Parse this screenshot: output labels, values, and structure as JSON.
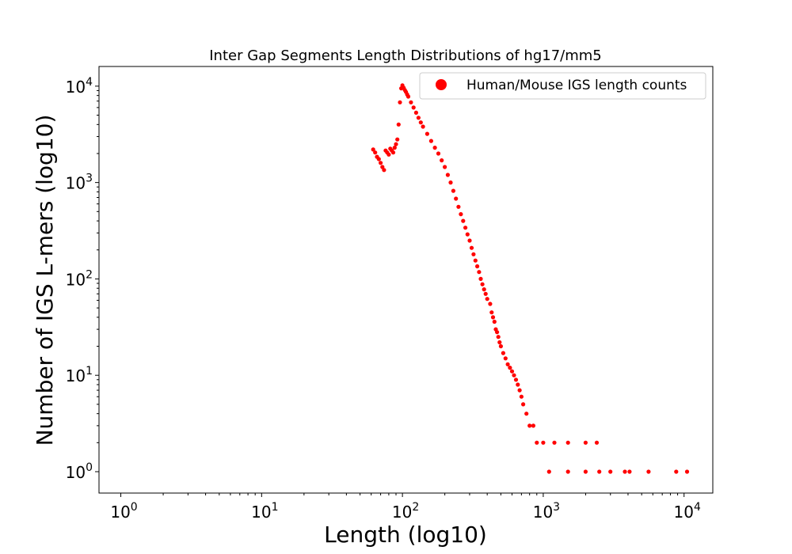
{
  "chart_data": {
    "type": "scatter",
    "title": "Inter Gap Segments Length Distributions of hg17/mm5",
    "xlabel": "Length (log10)",
    "ylabel": "Number of IGS L-mers (log10)",
    "xscale": "log",
    "yscale": "log",
    "xlim": [
      0.7,
      16000
    ],
    "ylim": [
      0.6,
      16000
    ],
    "grid": false,
    "legend_position": "top-right",
    "marker_color": "#ff0000",
    "x_ticks": [
      {
        "value": 1,
        "base": "10",
        "exp": "0"
      },
      {
        "value": 10,
        "base": "10",
        "exp": "1"
      },
      {
        "value": 100,
        "base": "10",
        "exp": "2"
      },
      {
        "value": 1000,
        "base": "10",
        "exp": "3"
      },
      {
        "value": 10000,
        "base": "10",
        "exp": "4"
      }
    ],
    "y_ticks": [
      {
        "value": 1,
        "base": "10",
        "exp": "0"
      },
      {
        "value": 10,
        "base": "10",
        "exp": "1"
      },
      {
        "value": 100,
        "base": "10",
        "exp": "2"
      },
      {
        "value": 1000,
        "base": "10",
        "exp": "3"
      },
      {
        "value": 10000,
        "base": "10",
        "exp": "4"
      }
    ],
    "series": [
      {
        "name": "Human/Mouse IGS length counts",
        "points": [
          [
            62,
            2200
          ],
          [
            64,
            2050
          ],
          [
            66,
            1850
          ],
          [
            68,
            1750
          ],
          [
            70,
            1600
          ],
          [
            72,
            1450
          ],
          [
            74,
            1350
          ],
          [
            76,
            2150
          ],
          [
            78,
            2050
          ],
          [
            80,
            1950
          ],
          [
            82,
            2250
          ],
          [
            84,
            2150
          ],
          [
            86,
            2050
          ],
          [
            88,
            2300
          ],
          [
            90,
            2500
          ],
          [
            92,
            2800
          ],
          [
            94,
            4000
          ],
          [
            96,
            6800
          ],
          [
            98,
            9500
          ],
          [
            100,
            10200
          ],
          [
            102,
            9600
          ],
          [
            104,
            9100
          ],
          [
            106,
            8700
          ],
          [
            108,
            8200
          ],
          [
            110,
            7800
          ],
          [
            115,
            6800
          ],
          [
            120,
            6000
          ],
          [
            125,
            5300
          ],
          [
            130,
            4700
          ],
          [
            135,
            4200
          ],
          [
            140,
            3800
          ],
          [
            150,
            3200
          ],
          [
            160,
            2700
          ],
          [
            170,
            2300
          ],
          [
            180,
            2000
          ],
          [
            190,
            1700
          ],
          [
            200,
            1450
          ],
          [
            210,
            1200
          ],
          [
            220,
            1000
          ],
          [
            230,
            820
          ],
          [
            240,
            680
          ],
          [
            250,
            560
          ],
          [
            260,
            470
          ],
          [
            270,
            400
          ],
          [
            280,
            340
          ],
          [
            290,
            290
          ],
          [
            300,
            250
          ],
          [
            310,
            210
          ],
          [
            320,
            180
          ],
          [
            330,
            155
          ],
          [
            340,
            135
          ],
          [
            350,
            118
          ],
          [
            360,
            100
          ],
          [
            370,
            88
          ],
          [
            380,
            78
          ],
          [
            390,
            70
          ],
          [
            400,
            62
          ],
          [
            420,
            55
          ],
          [
            430,
            45
          ],
          [
            440,
            40
          ],
          [
            450,
            36
          ],
          [
            460,
            30
          ],
          [
            470,
            28
          ],
          [
            480,
            25
          ],
          [
            490,
            22
          ],
          [
            500,
            20
          ],
          [
            520,
            17
          ],
          [
            540,
            15
          ],
          [
            560,
            13
          ],
          [
            580,
            12
          ],
          [
            600,
            11
          ],
          [
            620,
            10
          ],
          [
            640,
            9
          ],
          [
            660,
            8
          ],
          [
            680,
            7
          ],
          [
            700,
            6
          ],
          [
            720,
            5
          ],
          [
            760,
            4
          ],
          [
            800,
            3
          ],
          [
            850,
            3
          ],
          [
            900,
            2
          ],
          [
            1000,
            2
          ],
          [
            1200,
            2
          ],
          [
            1500,
            2
          ],
          [
            2000,
            2
          ],
          [
            2400,
            2
          ],
          [
            1100,
            1
          ],
          [
            1500,
            1
          ],
          [
            2000,
            1
          ],
          [
            2500,
            1
          ],
          [
            3000,
            1
          ],
          [
            3800,
            1
          ],
          [
            4100,
            1
          ],
          [
            5600,
            1
          ],
          [
            8800,
            1
          ],
          [
            10500,
            1
          ]
        ]
      }
    ]
  }
}
